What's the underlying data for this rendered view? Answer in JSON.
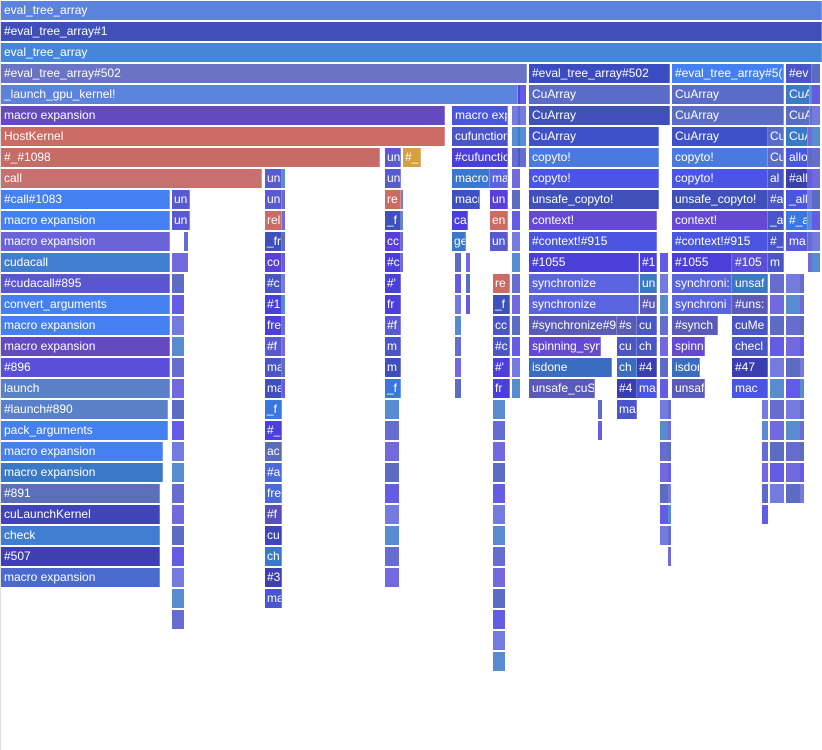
{
  "frames": [
    {
      "label": "eval_tree_array",
      "color": "#5b82dc"
    },
    {
      "label": "#eval_tree_array#1",
      "color": "#3f51b8"
    },
    {
      "label": "eval_tree_array",
      "color": "#4686d6"
    },
    {
      "label": "#eval_tree_array#502",
      "color": "#6a74c4"
    },
    {
      "label": "#eval_tree_array#502",
      "color": "#3a4cc0"
    },
    {
      "label": "#eval_tree_array#5(",
      "color": "#4480f0"
    },
    {
      "label": "#ev",
      "color": "#4a55c8"
    },
    {
      "label": "_launch_gpu_kernel!",
      "color": "#5b82dc"
    },
    {
      "label": "CuArray",
      "color": "#5a6cc8"
    },
    {
      "label": "CuArray",
      "color": "#5a6cc8"
    },
    {
      "label": "CuA",
      "color": "#3a78c8"
    },
    {
      "label": "macro expansion",
      "color": "#6549c0"
    },
    {
      "label": "macro expa",
      "color": "#4a55e0"
    },
    {
      "label": "CuArray",
      "color": "#3f51b8"
    },
    {
      "label": "CuArray",
      "color": "#5a6cc8"
    },
    {
      "label": "CuA",
      "color": "#5a6cc8"
    },
    {
      "label": "HostKernel",
      "color": "#cc6b63"
    },
    {
      "label": "cufunction",
      "color": "#4a55c8"
    },
    {
      "label": "CuArray",
      "color": "#3f51c8"
    },
    {
      "label": "CuArray",
      "color": "#3f51c8"
    },
    {
      "label": "Cu",
      "color": "#5a6cc8"
    },
    {
      "label": "CuA",
      "color": "#3a78c8"
    },
    {
      "label": "#_#1098",
      "color": "#c76b66"
    },
    {
      "label": "un",
      "color": "#5a5ad0"
    },
    {
      "label": "#_",
      "color": "#d4a040"
    },
    {
      "label": "#cufunctic",
      "color": "#4a3fd8"
    },
    {
      "label": "copyto!",
      "color": "#4a7ae0"
    },
    {
      "label": "copyto!",
      "color": "#4a7ae0"
    },
    {
      "label": "Cu",
      "color": "#5a6cc8"
    },
    {
      "label": "allo",
      "color": "#4a55e0"
    },
    {
      "label": "call",
      "color": "#c87070"
    },
    {
      "label": "un",
      "color": "#5a5ad0"
    },
    {
      "label": "un",
      "color": "#5a5ad0"
    },
    {
      "label": "macro",
      "color": "#3a78d0"
    },
    {
      "label": "ma",
      "color": "#5a64e0"
    },
    {
      "label": "copyto!",
      "color": "#4a55e8"
    },
    {
      "label": "copyto!",
      "color": "#4a55e8"
    },
    {
      "label": "al",
      "color": "#4a55c8"
    },
    {
      "label": "#all",
      "color": "#3a3fb0"
    },
    {
      "label": "#call#1083",
      "color": "#4480f0"
    },
    {
      "label": "un",
      "color": "#5a5ad0"
    },
    {
      "label": "un",
      "color": "#5a5ad0"
    },
    {
      "label": "re",
      "color": "#cc6b63"
    },
    {
      "label": "macro",
      "color": "#3f51c0"
    },
    {
      "label": "un",
      "color": "#5a3fd8"
    },
    {
      "label": "unsafe_copyto!",
      "color": "#3f51b8"
    },
    {
      "label": "unsafe_copyto!",
      "color": "#3f51b8"
    },
    {
      "label": "#a",
      "color": "#4a55c8"
    },
    {
      "label": "_all",
      "color": "#4a55e0"
    },
    {
      "label": "macro expansion",
      "color": "#4480f0"
    },
    {
      "label": "un",
      "color": "#5a5ad0"
    },
    {
      "label": "rel",
      "color": "#cc6b63"
    },
    {
      "label": "_f",
      "color": "#3f51b8"
    },
    {
      "label": "ca",
      "color": "#4a3fd8"
    },
    {
      "label": "en",
      "color": "#cc6b63"
    },
    {
      "label": "context!",
      "color": "#6549d0"
    },
    {
      "label": "context!",
      "color": "#6549d0"
    },
    {
      "label": "_a",
      "color": "#4a55c8"
    },
    {
      "label": "#_a",
      "color": "#3a78e0"
    },
    {
      "label": "macro expansion",
      "color": "#6a64d8"
    },
    {
      "label": "_fr",
      "color": "#3f51b8"
    },
    {
      "label": "cc",
      "color": "#5a3fd8"
    },
    {
      "label": "ge",
      "color": "#3a78c8"
    },
    {
      "label": "un",
      "color": "#5a5ad0"
    },
    {
      "label": "#context!#915",
      "color": "#4a55e0"
    },
    {
      "label": "#context!#915",
      "color": "#4a55e0"
    },
    {
      "label": "#_",
      "color": "#4a55c8"
    },
    {
      "label": "ma",
      "color": "#5a5ad8"
    },
    {
      "label": "cudacall",
      "color": "#3f7ed0"
    },
    {
      "label": "co",
      "color": "#5a3fd8"
    },
    {
      "label": "#c",
      "color": "#4a3fd8"
    },
    {
      "label": "#1055",
      "color": "#4a3fd8"
    },
    {
      "label": "#1",
      "color": "#4a3fd8"
    },
    {
      "label": "#1055",
      "color": "#4a3fd8"
    },
    {
      "label": "#105",
      "color": "#5a4fd8"
    },
    {
      "label": "m",
      "color": "#4a55c8"
    },
    {
      "label": "#cudacall#895",
      "color": "#5a55d0"
    },
    {
      "label": "#c",
      "color": "#4a55c8"
    },
    {
      "label": "#'",
      "color": "#4a3fd8"
    },
    {
      "label": "re",
      "color": "#cc6b63"
    },
    {
      "label": "synchronize",
      "color": "#5a64e0"
    },
    {
      "label": "un",
      "color": "#3a78c8"
    },
    {
      "label": "synchroni:",
      "color": "#5a64e0"
    },
    {
      "label": "unsaf",
      "color": "#3a78c8"
    },
    {
      "label": "convert_arguments",
      "color": "#4480f0"
    },
    {
      "label": "#1",
      "color": "#4a3fe0"
    },
    {
      "label": "fr",
      "color": "#4a3fd8"
    },
    {
      "label": "_f",
      "color": "#3f51b8"
    },
    {
      "label": "synchronize",
      "color": "#5a64e0"
    },
    {
      "label": "#u",
      "color": "#5a5ab8"
    },
    {
      "label": "synchroni",
      "color": "#5a64e0"
    },
    {
      "label": "#uns:",
      "color": "#5a5ab8"
    },
    {
      "label": "macro expansion",
      "color": "#4480f0"
    },
    {
      "label": "fre",
      "color": "#4a3fd8"
    },
    {
      "label": "#f",
      "color": "#5a5ad0"
    },
    {
      "label": "cc",
      "color": "#4a55c8"
    },
    {
      "label": "#synchronize#9",
      "color": "#5a5ab8"
    },
    {
      "label": "#s",
      "color": "#5a5ab8"
    },
    {
      "label": "cu",
      "color": "#4a55c8"
    },
    {
      "label": "#synch",
      "color": "#5a5ab8"
    },
    {
      "label": "cuMe",
      "color": "#4a55c8"
    },
    {
      "label": "macro expansion",
      "color": "#6549c0"
    },
    {
      "label": "#f",
      "color": "#5a5ad0"
    },
    {
      "label": "m",
      "color": "#4a55c8"
    },
    {
      "label": "#c",
      "color": "#4a55c8"
    },
    {
      "label": "spinning_syn",
      "color": "#6549d0"
    },
    {
      "label": "cu",
      "color": "#4a55c8"
    },
    {
      "label": "ch",
      "color": "#4a55c8"
    },
    {
      "label": "spinni",
      "color": "#6549d0"
    },
    {
      "label": "checl",
      "color": "#4a55c8"
    },
    {
      "label": "#896",
      "color": "#5a4fd8"
    },
    {
      "label": "ma",
      "color": "#4a55c8"
    },
    {
      "label": "m",
      "color": "#3f51b8"
    },
    {
      "label": "#'",
      "color": "#4a3fd8"
    },
    {
      "label": "isdone",
      "color": "#3a6cc0"
    },
    {
      "label": "ch",
      "color": "#3a6cc0"
    },
    {
      "label": "#4",
      "color": "#3a3fb0"
    },
    {
      "label": "isdon",
      "color": "#3a6cc0"
    },
    {
      "label": "#47",
      "color": "#3a3fb0"
    },
    {
      "label": "launch",
      "color": "#5a80c8"
    },
    {
      "label": "ma",
      "color": "#3f51b8"
    },
    {
      "label": "_f",
      "color": "#3a78e0"
    },
    {
      "label": "fr",
      "color": "#4a3fd8"
    },
    {
      "label": "unsafe_cuS",
      "color": "#5a5ab8"
    },
    {
      "label": "#4",
      "color": "#3a3fb0"
    },
    {
      "label": "ma",
      "color": "#4a55e0"
    },
    {
      "label": "unsaf",
      "color": "#5a5ab8"
    },
    {
      "label": "mac",
      "color": "#4a55e0"
    },
    {
      "label": "#launch#890",
      "color": "#5a80c8"
    },
    {
      "label": "_f",
      "color": "#3a78e0"
    },
    {
      "label": "ma",
      "color": "#4a55c8"
    },
    {
      "label": "pack_arguments",
      "color": "#4480f0"
    },
    {
      "label": "#_",
      "color": "#4a3fe0"
    },
    {
      "label": "macro expansion",
      "color": "#4480f0"
    },
    {
      "label": "ac",
      "color": "#5a6cb8"
    },
    {
      "label": "macro expansion",
      "color": "#3a78c8"
    },
    {
      "label": "#a",
      "color": "#4a6ad8"
    },
    {
      "label": "#891",
      "color": "#5a70b8"
    },
    {
      "label": "fre",
      "color": "#4a6ad8"
    },
    {
      "label": "cuLaunchKernel",
      "color": "#3f44b8"
    },
    {
      "label": "#f",
      "color": "#5a4fb8"
    },
    {
      "label": "check",
      "color": "#3f7ed0"
    },
    {
      "label": "cu",
      "color": "#3f44b8"
    },
    {
      "label": "#507",
      "color": "#3f3fb0"
    },
    {
      "label": "ch",
      "color": "#3a78c8"
    },
    {
      "label": "macro expansion",
      "color": "#4a6ad0"
    },
    {
      "label": "#3",
      "color": "#3f3fb0"
    },
    {
      "label": "ma",
      "color": "#4a55d0"
    }
  ]
}
